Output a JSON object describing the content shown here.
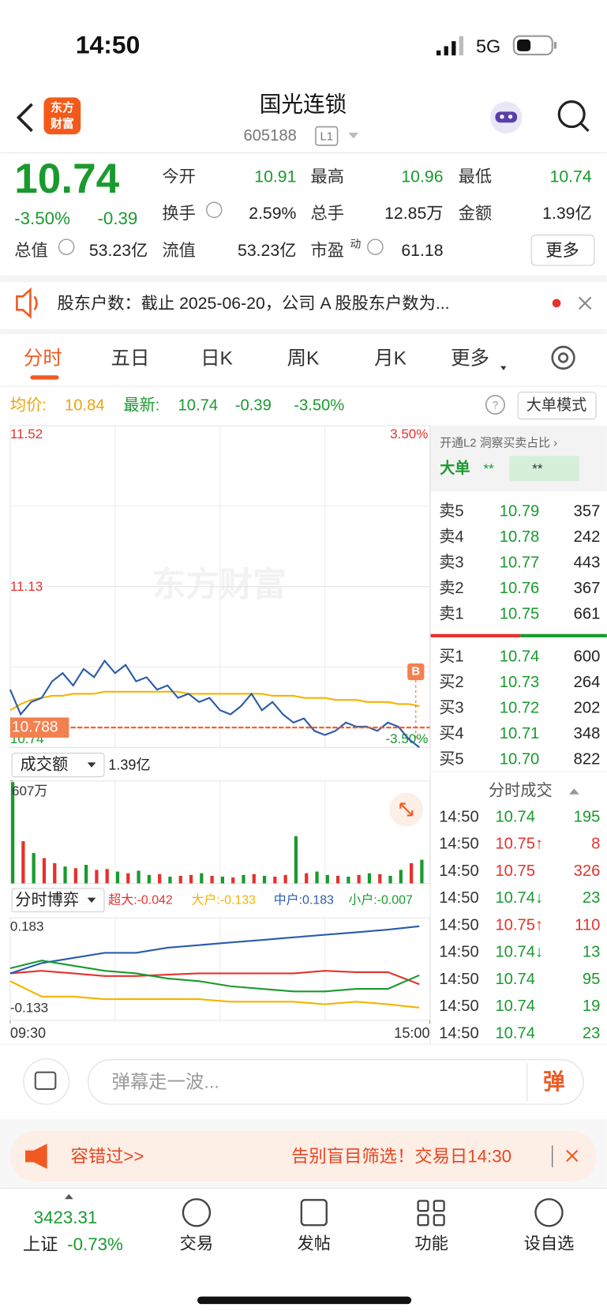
{
  "status": {
    "time": "14:50",
    "network": "5G"
  },
  "header": {
    "logo": [
      "东方",
      "财富"
    ],
    "title": "国光连锁",
    "code": "605188",
    "level": "L1"
  },
  "quote": {
    "price": "10.74",
    "change_pct": "-3.50%",
    "change": "-0.39",
    "stats": [
      {
        "label": "今开",
        "value": "10.91",
        "color": "#1a9a2e"
      },
      {
        "label": "最高",
        "value": "10.96",
        "color": "#1a9a2e"
      },
      {
        "label": "最低",
        "value": "10.74",
        "color": "#1a9a2e"
      },
      {
        "label": "换手",
        "value": "2.59%",
        "color": "#222222"
      },
      {
        "label": "总手",
        "value": "12.85万",
        "color": "#222222"
      },
      {
        "label": "金额",
        "value": "1.39亿",
        "color": "#222222"
      },
      {
        "label": "总值",
        "value": "53.23亿",
        "color": "#222222"
      },
      {
        "label": "流值",
        "value": "53.23亿",
        "color": "#222222"
      },
      {
        "label": "市盈",
        "sup": "动",
        "value": "61.18",
        "color": "#222222"
      }
    ],
    "more": "更多"
  },
  "notice": "股东户数：截止 2025-06-20，公司 A 股股东户数为...",
  "tabs": [
    "分时",
    "五日",
    "日K",
    "周K",
    "月K",
    "更多"
  ],
  "info_bar": {
    "avg": "10.84",
    "last": "10.74",
    "change": "-0.39",
    "change_pct": "-3.50%",
    "mode": "大单模式"
  },
  "chart_data": [
    {
      "type": "line",
      "watermark": "东方财富",
      "xlim": [
        0,
        240
      ],
      "ylim": [
        10.74,
        11.52
      ],
      "yticks": [
        10.74,
        11.13,
        11.52
      ],
      "y2lim": [
        -3.5,
        3.5
      ],
      "y2ticks": [
        {
          "value": -3.5,
          "label": "-3.50%"
        },
        {
          "value": 3.5,
          "label": "3.50%"
        }
      ],
      "x": [
        0,
        6,
        12,
        18,
        24,
        30,
        36,
        42,
        48,
        54,
        60,
        66,
        72,
        78,
        84,
        90,
        96,
        102,
        108,
        114,
        120,
        126,
        132,
        138,
        144,
        150,
        156,
        162,
        168,
        174,
        180,
        186,
        192,
        198,
        204,
        210,
        216,
        222,
        228,
        234
      ],
      "series": [
        {
          "name": "均价:",
          "color": "#f5b400",
          "values": [
            10.83,
            10.845,
            10.855,
            10.86,
            10.865,
            10.865,
            10.87,
            10.87,
            10.87,
            10.875,
            10.875,
            10.875,
            10.875,
            10.875,
            10.875,
            10.875,
            10.875,
            10.87,
            10.87,
            10.87,
            10.87,
            10.87,
            10.87,
            10.87,
            10.87,
            10.865,
            10.865,
            10.865,
            10.86,
            10.86,
            10.86,
            10.855,
            10.855,
            10.855,
            10.85,
            10.85,
            10.85,
            10.845,
            10.845,
            10.84
          ]
        },
        {
          "name": "最新:",
          "color": "#2a5caa",
          "values": [
            10.88,
            10.82,
            10.85,
            10.86,
            10.9,
            10.92,
            10.89,
            10.93,
            10.91,
            10.95,
            10.92,
            10.94,
            10.9,
            10.91,
            10.88,
            10.89,
            10.86,
            10.87,
            10.85,
            10.86,
            10.83,
            10.82,
            10.84,
            10.87,
            10.83,
            10.85,
            10.82,
            10.8,
            10.81,
            10.78,
            10.77,
            10.78,
            10.8,
            10.79,
            10.79,
            10.78,
            10.8,
            10.79,
            10.76,
            10.74
          ]
        }
      ],
      "reference_line": {
        "value": 10.788,
        "label": "10.788"
      },
      "marker": {
        "label": "B",
        "x": 232,
        "value": 10.76
      }
    },
    {
      "type": "bar",
      "title": "成交额",
      "total": "1.39亿",
      "xlim": [
        0,
        240
      ],
      "ylim": [
        0,
        607
      ],
      "yticks": [
        {
          "value": 607,
          "label": "607万"
        }
      ],
      "x": [
        0,
        6,
        12,
        18,
        24,
        30,
        36,
        42,
        48,
        54,
        60,
        66,
        72,
        78,
        84,
        90,
        96,
        102,
        108,
        114,
        120,
        126,
        132,
        138,
        144,
        150,
        156,
        162,
        168,
        174,
        180,
        186,
        192,
        198,
        204,
        210,
        216,
        222,
        228,
        234
      ],
      "values": [
        600,
        250,
        180,
        150,
        120,
        100,
        90,
        110,
        80,
        85,
        70,
        60,
        75,
        50,
        55,
        40,
        45,
        50,
        60,
        45,
        40,
        35,
        50,
        55,
        45,
        40,
        50,
        280,
        60,
        70,
        50,
        45,
        40,
        50,
        60,
        55,
        45,
        80,
        120,
        140
      ],
      "colors": [
        "#1a9a2e",
        "#e5322d",
        "#1a9a2e",
        "#e5322d",
        "#e5322d",
        "#1a9a2e",
        "#e5322d",
        "#1a9a2e",
        "#e5322d",
        "#e5322d",
        "#1a9a2e",
        "#e5322d",
        "#1a9a2e",
        "#1a9a2e",
        "#e5322d",
        "#1a9a2e",
        "#e5322d",
        "#e5322d",
        "#1a9a2e",
        "#e5322d",
        "#1a9a2e",
        "#e5322d",
        "#1a9a2e",
        "#e5322d",
        "#1a9a2e",
        "#e5322d",
        "#e5322d",
        "#1a9a2e",
        "#e5322d",
        "#1a9a2e",
        "#1a9a2e",
        "#e5322d",
        "#1a9a2e",
        "#e5322d",
        "#1a9a2e",
        "#e5322d",
        "#1a9a2e",
        "#1a9a2e",
        "#e5322d",
        "#1a9a2e"
      ]
    },
    {
      "type": "line",
      "title": "分时博弈",
      "xlim": [
        0,
        240
      ],
      "ylim": [
        -0.182,
        0.216
      ],
      "yticks": [
        -0.133,
        0.183
      ],
      "xticks": [
        {
          "value": 0,
          "label": "09:30"
        },
        {
          "value": 240,
          "label": "15:00"
        }
      ],
      "x": [
        0,
        18,
        36,
        54,
        72,
        90,
        108,
        126,
        144,
        162,
        180,
        198,
        216,
        234
      ],
      "series": [
        {
          "name": "超大:-0.042",
          "color": "#e5322d",
          "values": [
            0,
            0.01,
            0,
            -0.01,
            -0.01,
            -0.005,
            0,
            0,
            0,
            0,
            0.01,
            0.005,
            0.005,
            -0.042
          ]
        },
        {
          "name": "大户:-0.133",
          "color": "#f5b400",
          "values": [
            -0.03,
            -0.09,
            -0.09,
            -0.1,
            -0.1,
            -0.1,
            -0.1,
            -0.11,
            -0.11,
            -0.11,
            -0.12,
            -0.11,
            -0.12,
            -0.133
          ]
        },
        {
          "name": "中户:0.183",
          "color": "#2a5caa",
          "values": [
            0,
            0.04,
            0.06,
            0.08,
            0.08,
            0.1,
            0.11,
            0.12,
            0.13,
            0.14,
            0.15,
            0.16,
            0.17,
            0.183
          ]
        },
        {
          "name": "小户:-0.007",
          "color": "#1a9a2e",
          "values": [
            0.02,
            0.05,
            0.03,
            0.01,
            0,
            -0.02,
            -0.03,
            -0.05,
            -0.06,
            -0.07,
            -0.07,
            -0.06,
            -0.06,
            -0.007
          ]
        }
      ]
    }
  ],
  "order_book": {
    "l2": "开通L2 洞察买卖占比 ›",
    "big": "大单",
    "big_a": "**",
    "big_b": "**",
    "price_color": "#1a9a2e",
    "asks": [
      {
        "label": "卖5",
        "price": "10.79",
        "vol": "357"
      },
      {
        "label": "卖4",
        "price": "10.78",
        "vol": "242"
      },
      {
        "label": "卖3",
        "price": "10.77",
        "vol": "443"
      },
      {
        "label": "卖2",
        "price": "10.76",
        "vol": "367"
      },
      {
        "label": "卖1",
        "price": "10.75",
        "vol": "661"
      }
    ],
    "bids": [
      {
        "label": "买1",
        "price": "10.74",
        "vol": "600"
      },
      {
        "label": "买2",
        "price": "10.73",
        "vol": "264"
      },
      {
        "label": "买3",
        "price": "10.72",
        "vol": "202"
      },
      {
        "label": "买4",
        "price": "10.71",
        "vol": "348"
      },
      {
        "label": "买5",
        "price": "10.70",
        "vol": "822"
      }
    ]
  },
  "trades": {
    "title": "分时成交",
    "rows": [
      {
        "time": "14:50",
        "price": "10.74",
        "vol": "195",
        "color": "#1a9a2e"
      },
      {
        "time": "14:50",
        "price": "10.75↑",
        "vol": "8",
        "color": "#e5322d"
      },
      {
        "time": "14:50",
        "price": "10.75",
        "vol": "326",
        "color": "#e5322d"
      },
      {
        "time": "14:50",
        "price": "10.74↓",
        "vol": "23",
        "color": "#1a9a2e"
      },
      {
        "time": "14:50",
        "price": "10.75↑",
        "vol": "110",
        "color": "#e5322d"
      },
      {
        "time": "14:50",
        "price": "10.74↓",
        "vol": "13",
        "color": "#1a9a2e"
      },
      {
        "time": "14:50",
        "price": "10.74",
        "vol": "95",
        "color": "#1a9a2e"
      },
      {
        "time": "14:50",
        "price": "10.74",
        "vol": "19",
        "color": "#1a9a2e"
      },
      {
        "time": "14:50",
        "price": "10.74",
        "vol": "23",
        "color": "#1a9a2e"
      }
    ]
  },
  "danmu": {
    "placeholder": "弹幕走一波...",
    "button": "弹"
  },
  "banner": {
    "left": "容错过>>",
    "right": "告别盲目筛选！交易日14:30"
  },
  "nav": {
    "index_value": "3423.31",
    "index_name": "上证",
    "index_change": "-0.73%",
    "items": [
      "交易",
      "发帖",
      "功能",
      "设自选"
    ]
  }
}
